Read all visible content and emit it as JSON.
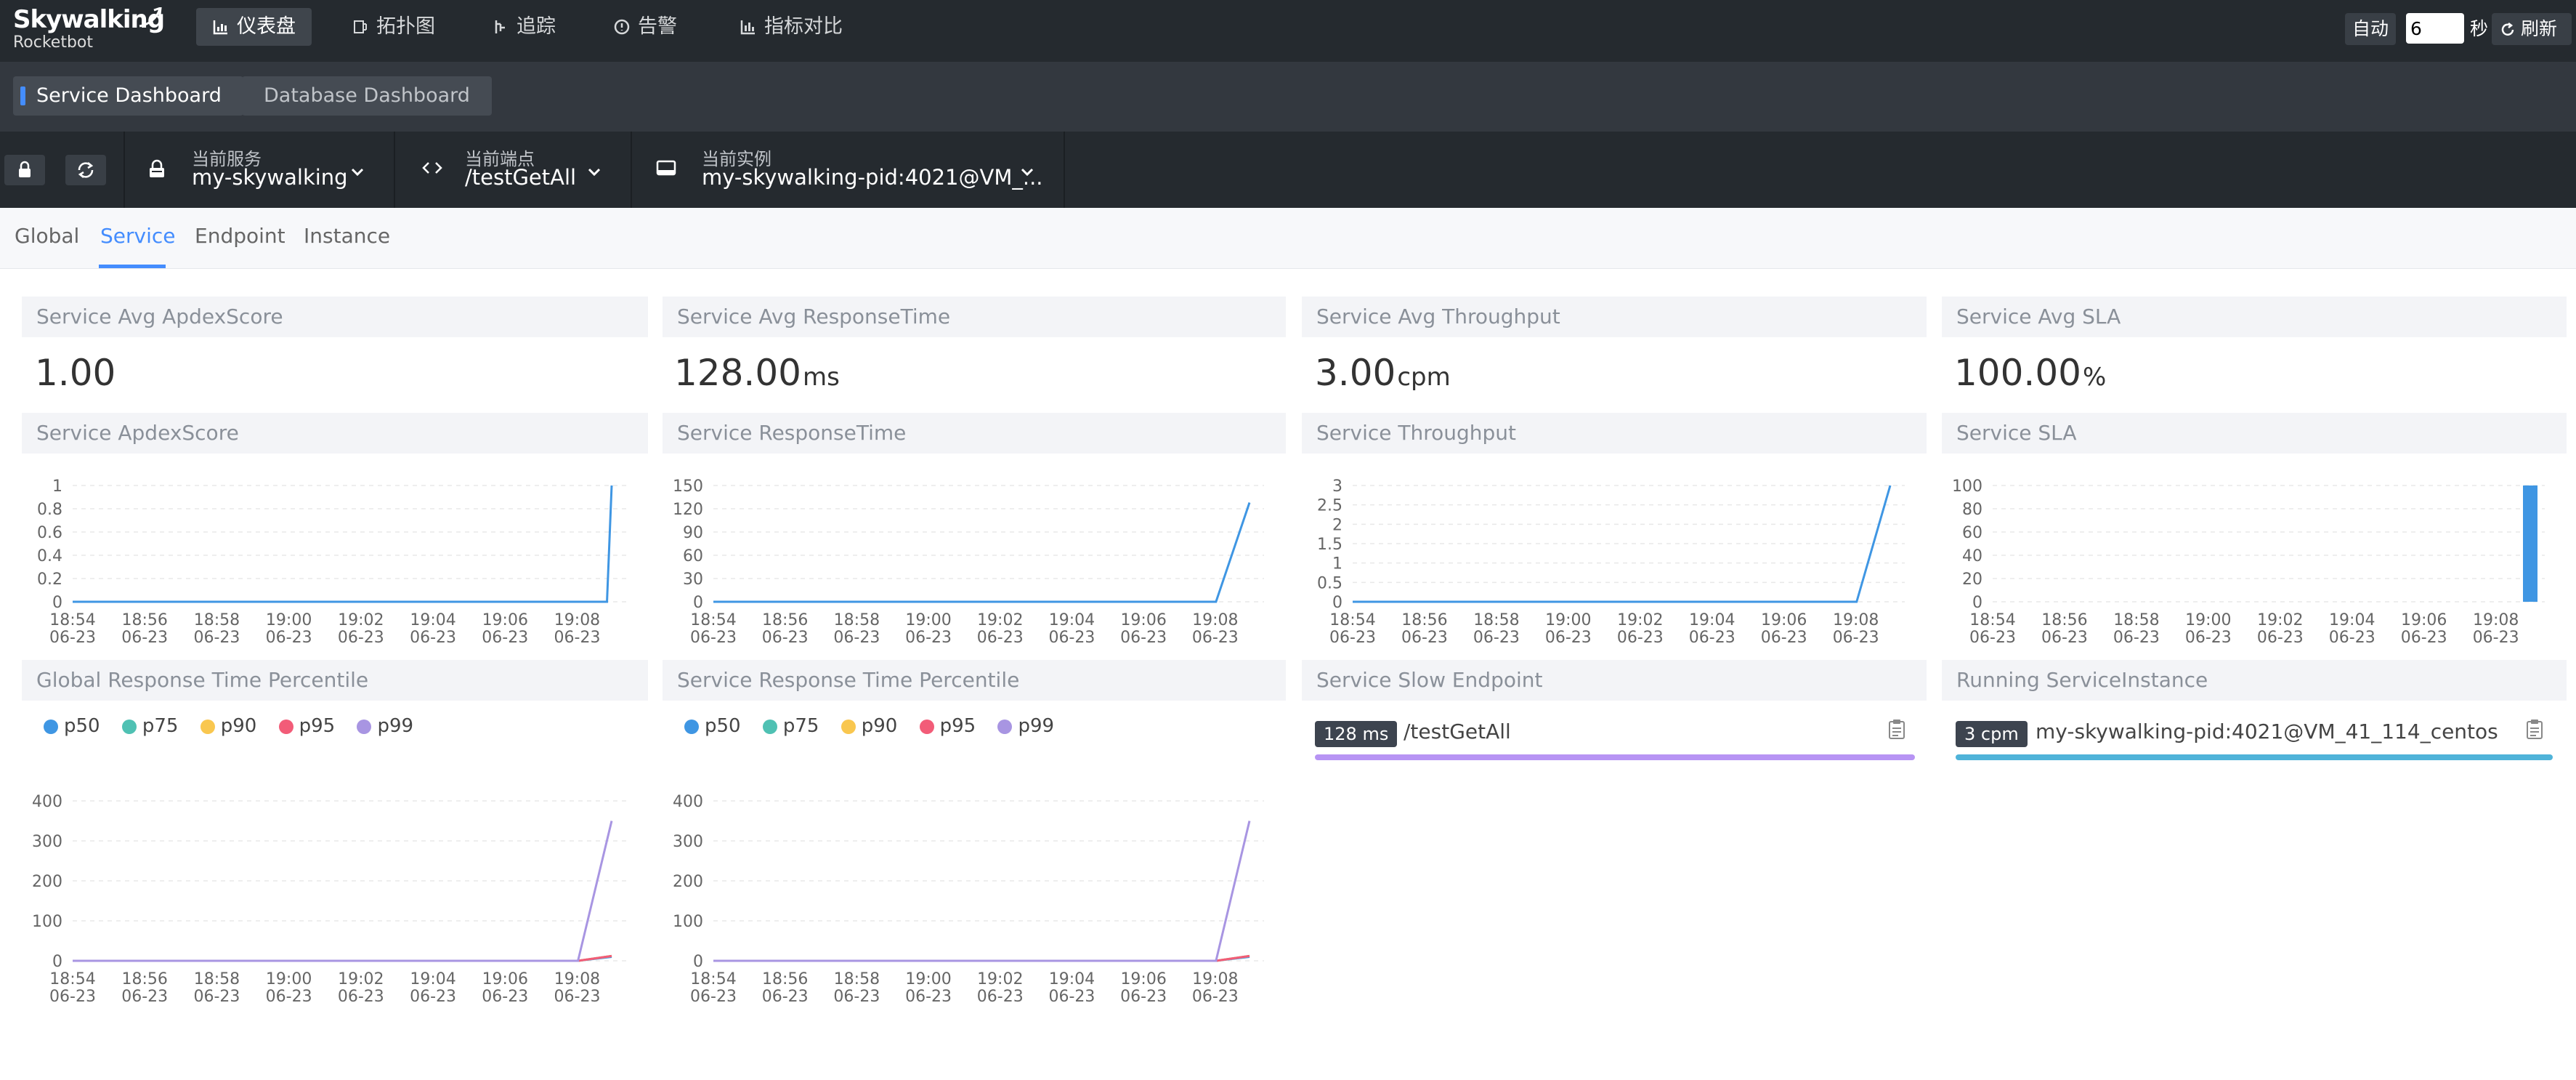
{
  "app": {
    "logo_line1": "Skywalking",
    "logo_line2": "Rocketbot"
  },
  "nav": {
    "items": [
      {
        "label": "仪表盘",
        "icon": "dashboard-icon",
        "active": true
      },
      {
        "label": "拓扑图",
        "icon": "topology-icon",
        "active": false
      },
      {
        "label": "追踪",
        "icon": "trace-icon",
        "active": false
      },
      {
        "label": "告警",
        "icon": "alarm-icon",
        "active": false
      },
      {
        "label": "指标对比",
        "icon": "comparison-icon",
        "active": false
      }
    ],
    "auto_label": "自动",
    "interval_value": "6",
    "seconds_label": "秒",
    "refresh_label": "刷新"
  },
  "dashboards": [
    {
      "label": "Service Dashboard",
      "active": true
    },
    {
      "label": "Database Dashboard",
      "active": false
    }
  ],
  "selectors": {
    "service": {
      "label": "当前服务",
      "value": "my-skywalking"
    },
    "endpoint": {
      "label": "当前端点",
      "value": "/testGetAll"
    },
    "instance": {
      "label": "当前实例",
      "value": "my-skywalking-pid:4021@VM_..."
    }
  },
  "tabs": [
    {
      "label": "Global"
    },
    {
      "label": "Service",
      "active": true
    },
    {
      "label": "Endpoint"
    },
    {
      "label": "Instance"
    }
  ],
  "metrics": [
    {
      "title": "Service Avg ApdexScore",
      "value": "1.00",
      "unit": ""
    },
    {
      "title": "Service Avg ResponseTime",
      "value": "128.00",
      "unit": "ms"
    },
    {
      "title": "Service Avg Throughput",
      "value": "3.00",
      "unit": "cpm"
    },
    {
      "title": "Service Avg SLA",
      "value": "100.00",
      "unit": "%"
    }
  ],
  "colors": {
    "accent": "#448dfe",
    "p50": "#3f96e3",
    "p75": "#4fc1b3",
    "p90": "#f9c74f",
    "p95": "#f25c78",
    "p99": "#a895e2",
    "slow_bar": "#b794f4",
    "instance_bar": "#4fb3d9"
  },
  "chart_data": [
    {
      "id": "apdex",
      "title": "Service ApdexScore",
      "type": "line",
      "x_labels": [
        "18:54\n06-23",
        "18:56\n06-23",
        "18:58\n06-23",
        "19:00\n06-23",
        "19:02\n06-23",
        "19:04\n06-23",
        "19:06\n06-23",
        "19:08\n06-23"
      ],
      "y_ticks": [
        "0",
        "0.2",
        "0.4",
        "0.6",
        "0.8",
        "1"
      ],
      "ylim": [
        0,
        1
      ],
      "series": [
        {
          "values": [
            0,
            0,
            0,
            0,
            0,
            0,
            0,
            0,
            0,
            0,
            0,
            0,
            0,
            0,
            0,
            0,
            0,
            0,
            0,
            0,
            0,
            0,
            0,
            0,
            0,
            0,
            0,
            0,
            0,
            0,
            0,
            0,
            0,
            0,
            0,
            0,
            0,
            0,
            0,
            0,
            0,
            0,
            0,
            0,
            0,
            0,
            0,
            0,
            0,
            0,
            0,
            0,
            0,
            0,
            0,
            0,
            0,
            0,
            0,
            0,
            0,
            0,
            0,
            0,
            0,
            0,
            0,
            0,
            0,
            0,
            0,
            0,
            0,
            0,
            0,
            0,
            0,
            0,
            0,
            0,
            0,
            0,
            0,
            0,
            0,
            0,
            0,
            0,
            0,
            0,
            0,
            0,
            0,
            0,
            0,
            0,
            0,
            0,
            0,
            0,
            0,
            0,
            0,
            0,
            0,
            0,
            0,
            0,
            0,
            0,
            0,
            0,
            0,
            0,
            0,
            1
          ],
          "color": "#3f96e3"
        }
      ],
      "type_detail": "line"
    },
    {
      "id": "resp",
      "title": "Service ResponseTime",
      "type": "line",
      "x_labels": [
        "18:54\n06-23",
        "18:56\n06-23",
        "18:58\n06-23",
        "19:00\n06-23",
        "19:02\n06-23",
        "19:04\n06-23",
        "19:06\n06-23",
        "19:08\n06-23"
      ],
      "y_ticks": [
        "0",
        "30",
        "60",
        "90",
        "120",
        "150"
      ],
      "ylim": [
        0,
        150
      ],
      "series": [
        {
          "values": [
            0,
            0,
            0,
            0,
            0,
            0,
            0,
            0,
            0,
            0,
            0,
            0,
            0,
            0,
            0,
            0,
            128
          ],
          "color": "#3f96e3"
        }
      ]
    },
    {
      "id": "thru",
      "title": "Service Throughput",
      "type": "line",
      "x_labels": [
        "18:54\n06-23",
        "18:56\n06-23",
        "18:58\n06-23",
        "19:00\n06-23",
        "19:02\n06-23",
        "19:04\n06-23",
        "19:06\n06-23",
        "19:08\n06-23"
      ],
      "y_ticks": [
        "0",
        "0.5",
        "1",
        "1.5",
        "2",
        "2.5",
        "3"
      ],
      "ylim": [
        0,
        3
      ],
      "series": [
        {
          "values": [
            0,
            0,
            0,
            0,
            0,
            0,
            0,
            0,
            0,
            0,
            0,
            0,
            0,
            0,
            0,
            0,
            3
          ],
          "color": "#3f96e3"
        }
      ]
    },
    {
      "id": "sla",
      "title": "Service SLA",
      "type": "bar",
      "x_labels": [
        "18:54\n06-23",
        "18:56\n06-23",
        "18:58\n06-23",
        "19:00\n06-23",
        "19:02\n06-23",
        "19:04\n06-23",
        "19:06\n06-23",
        "19:08\n06-23"
      ],
      "y_ticks": [
        "0",
        "20",
        "40",
        "60",
        "80",
        "100"
      ],
      "ylim": [
        0,
        100
      ],
      "series": [
        {
          "values": [
            0,
            0,
            0,
            0,
            0,
            0,
            0,
            0,
            0,
            0,
            0,
            0,
            0,
            0,
            0,
            0,
            100
          ],
          "color": "#3f96e3"
        }
      ]
    },
    {
      "id": "gpct",
      "title": "Global Response Time Percentile",
      "type": "line",
      "legend": [
        "p50",
        "p75",
        "p90",
        "p95",
        "p99"
      ],
      "x_labels": [
        "18:54\n06-23",
        "18:56\n06-23",
        "18:58\n06-23",
        "19:00\n06-23",
        "19:02\n06-23",
        "19:04\n06-23",
        "19:06\n06-23",
        "19:08\n06-23"
      ],
      "y_ticks": [
        "0",
        "100",
        "200",
        "300",
        "400"
      ],
      "ylim": [
        0,
        400
      ],
      "series": [
        {
          "name": "p50",
          "values": [
            0,
            0,
            0,
            0,
            0,
            0,
            0,
            0,
            0,
            0,
            0,
            0,
            0,
            0,
            0,
            0,
            10
          ],
          "color": "#3f96e3"
        },
        {
          "name": "p75",
          "values": [
            0,
            0,
            0,
            0,
            0,
            0,
            0,
            0,
            0,
            0,
            0,
            0,
            0,
            0,
            0,
            0,
            12
          ],
          "color": "#4fc1b3"
        },
        {
          "name": "p90",
          "values": [
            0,
            0,
            0,
            0,
            0,
            0,
            0,
            0,
            0,
            0,
            0,
            0,
            0,
            0,
            0,
            0,
            12
          ],
          "color": "#f9c74f"
        },
        {
          "name": "p95",
          "values": [
            0,
            0,
            0,
            0,
            0,
            0,
            0,
            0,
            0,
            0,
            0,
            0,
            0,
            0,
            0,
            0,
            12
          ],
          "color": "#f25c78"
        },
        {
          "name": "p99",
          "values": [
            0,
            0,
            0,
            0,
            0,
            0,
            0,
            0,
            0,
            0,
            0,
            0,
            0,
            0,
            0,
            0,
            350
          ],
          "color": "#a895e2"
        }
      ]
    },
    {
      "id": "spct",
      "title": "Service Response Time Percentile",
      "type": "line",
      "legend": [
        "p50",
        "p75",
        "p90",
        "p95",
        "p99"
      ],
      "x_labels": [
        "18:54\n06-23",
        "18:56\n06-23",
        "18:58\n06-23",
        "19:00\n06-23",
        "19:02\n06-23",
        "19:04\n06-23",
        "19:06\n06-23",
        "19:08\n06-23"
      ],
      "y_ticks": [
        "0",
        "100",
        "200",
        "300",
        "400"
      ],
      "ylim": [
        0,
        400
      ],
      "series": [
        {
          "name": "p50",
          "values": [
            0,
            0,
            0,
            0,
            0,
            0,
            0,
            0,
            0,
            0,
            0,
            0,
            0,
            0,
            0,
            0,
            10
          ],
          "color": "#3f96e3"
        },
        {
          "name": "p75",
          "values": [
            0,
            0,
            0,
            0,
            0,
            0,
            0,
            0,
            0,
            0,
            0,
            0,
            0,
            0,
            0,
            0,
            12
          ],
          "color": "#4fc1b3"
        },
        {
          "name": "p90",
          "values": [
            0,
            0,
            0,
            0,
            0,
            0,
            0,
            0,
            0,
            0,
            0,
            0,
            0,
            0,
            0,
            0,
            12
          ],
          "color": "#f9c74f"
        },
        {
          "name": "p95",
          "values": [
            0,
            0,
            0,
            0,
            0,
            0,
            0,
            0,
            0,
            0,
            0,
            0,
            0,
            0,
            0,
            0,
            12
          ],
          "color": "#f25c78"
        },
        {
          "name": "p99",
          "values": [
            0,
            0,
            0,
            0,
            0,
            0,
            0,
            0,
            0,
            0,
            0,
            0,
            0,
            0,
            0,
            0,
            350
          ],
          "color": "#a895e2"
        }
      ]
    }
  ],
  "slow_endpoint": {
    "title": "Service Slow Endpoint",
    "badge": "128 ms",
    "name": "/testGetAll",
    "fill": 1.0
  },
  "running_instance": {
    "title": "Running ServiceInstance",
    "badge": "3 cpm",
    "name": "my-skywalking-pid:4021@VM_41_114_centos",
    "fill": 1.0
  }
}
